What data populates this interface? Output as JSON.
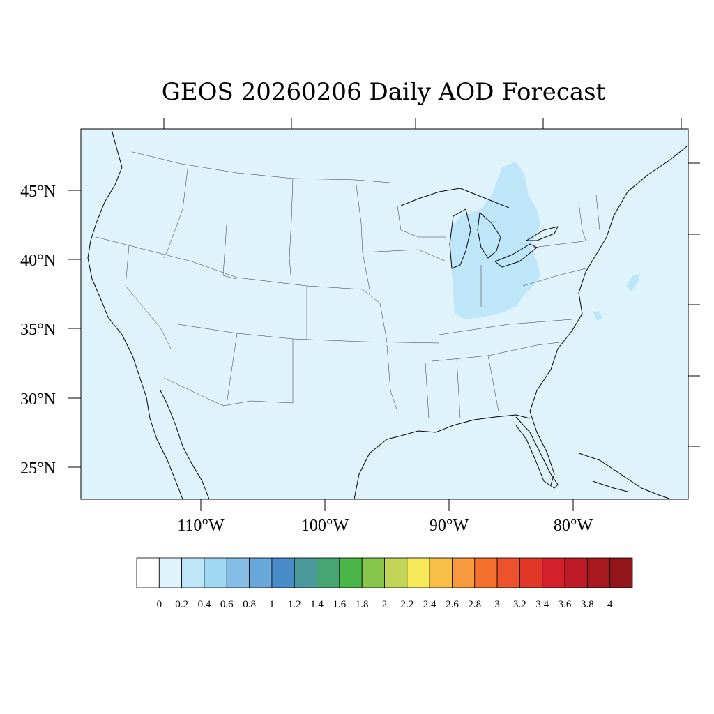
{
  "map": {
    "title": "GEOS 20260206 Daily AOD Forecast",
    "lat_labels": [
      "45°N",
      "40°N",
      "35°N",
      "30°N",
      "25°N"
    ],
    "lon_labels": [
      "110°W",
      "100°W",
      "90°W",
      "80°W"
    ],
    "ocean_color": "#dff3fb",
    "aod_region_color": "#bee6f8"
  },
  "colorbar": {
    "colors": [
      "#ffffff",
      "#dff3fb",
      "#bee6f8",
      "#a0d8f4",
      "#85bde6",
      "#6aa8dc",
      "#4a8bca",
      "#4a9a9c",
      "#47a574",
      "#4bb648",
      "#86c44a",
      "#c2d557",
      "#f7e85a",
      "#f8bf46",
      "#f7993c",
      "#f4702c",
      "#ec522b",
      "#e03728",
      "#d4202a",
      "#be1a28",
      "#a8181f",
      "#91151b"
    ],
    "labels": [
      "0",
      "0.2",
      "0.4",
      "0.6",
      "0.8",
      "1",
      "1.2",
      "1.4",
      "1.6",
      "1.8",
      "2",
      "2.2",
      "2.4",
      "2.6",
      "2.8",
      "3",
      "3.2",
      "3.4",
      "3.6",
      "3.8",
      "4"
    ]
  }
}
